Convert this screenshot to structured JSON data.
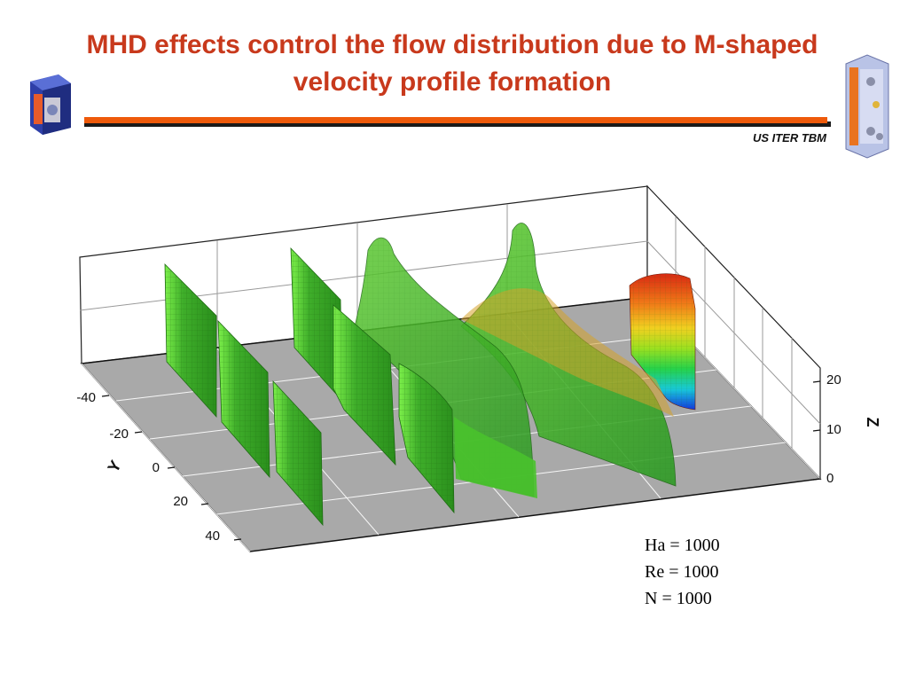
{
  "slide": {
    "title": "MHD effects control the flow distribution due to M-shaped velocity profile formation",
    "tagline": "US ITER TBM"
  },
  "logos": {
    "left": "tbm-module-logo",
    "right": "tbm-assembly-logo"
  },
  "axes": {
    "y_label": "Y",
    "z_label": "Z",
    "y_ticks": [
      "-40",
      "-20",
      "0",
      "20",
      "40"
    ],
    "z_ticks": [
      "20",
      "10",
      "0"
    ]
  },
  "parameters": [
    "Ha = 1000",
    "Re = 1000",
    "N = 1000"
  ],
  "colors": {
    "title": "#c8391c",
    "rule": "#ee5a0b",
    "floor": "#a9a9a9",
    "surface": "#3fae2a"
  }
}
